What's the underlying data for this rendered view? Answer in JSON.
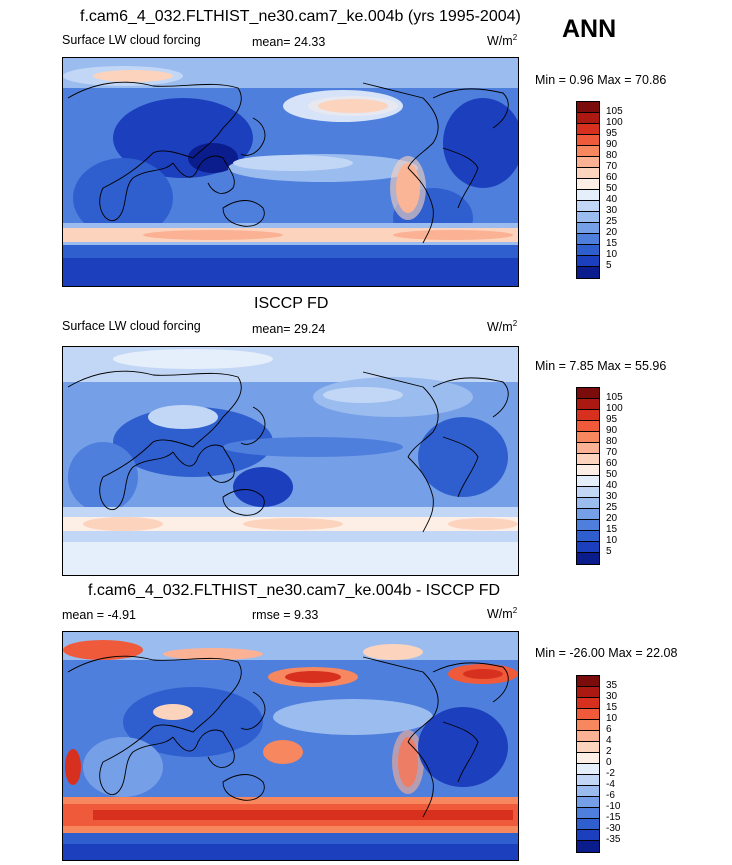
{
  "season": "ANN",
  "panels": [
    {
      "title": "f.cam6_4_032.FLTHIST_ne30.cam7_ke.004b (yrs 1995-2004)",
      "variable": "Surface LW cloud forcing",
      "stat": "mean=  24.33",
      "units_base": "W/m",
      "units_exp": "2",
      "minmax": "Min =   0.96 Max =  70.86",
      "levels": [
        "105",
        "100",
        "95",
        "90",
        "80",
        "70",
        "60",
        "50",
        "40",
        "30",
        "25",
        "20",
        "15",
        "10",
        "5"
      ],
      "colors": [
        "#7a0c0c",
        "#ac1913",
        "#d7301f",
        "#ef5a3a",
        "#f7875f",
        "#fbb194",
        "#fcd3bd",
        "#fdeee6",
        "#e5eefb",
        "#c2d7f5",
        "#9bbcef",
        "#759fe7",
        "#4f7fdc",
        "#2f5fcf",
        "#1b3fbd",
        "#0b1d8c"
      ]
    },
    {
      "title": "ISCCP FD",
      "variable": "Surface LW cloud forcing",
      "stat": "mean=  29.24",
      "units_base": "W/m",
      "units_exp": "2",
      "minmax": "Min =   7.85 Max =  55.96",
      "levels": [
        "105",
        "100",
        "95",
        "90",
        "80",
        "70",
        "60",
        "50",
        "40",
        "30",
        "25",
        "20",
        "15",
        "10",
        "5"
      ],
      "colors": [
        "#7a0c0c",
        "#ac1913",
        "#d7301f",
        "#ef5a3a",
        "#f7875f",
        "#fbb194",
        "#fcd3bd",
        "#fdeee6",
        "#e5eefb",
        "#c2d7f5",
        "#9bbcef",
        "#759fe7",
        "#4f7fdc",
        "#2f5fcf",
        "#1b3fbd",
        "#0b1d8c"
      ]
    },
    {
      "title": "f.cam6_4_032.FLTHIST_ne30.cam7_ke.004b - ISCCP FD",
      "variable": "mean =  -4.91",
      "stat": "rmse =   9.33",
      "units_base": "W/m",
      "units_exp": "2",
      "minmax": "Min = -26.00 Max =  22.08",
      "levels": [
        "35",
        "30",
        "15",
        "10",
        "6",
        "4",
        "2",
        "0",
        "-2",
        "-4",
        "-6",
        "-10",
        "-15",
        "-30",
        "-35"
      ],
      "colors": [
        "#7a0c0c",
        "#ac1913",
        "#d7301f",
        "#ef5a3a",
        "#f7875f",
        "#fbb194",
        "#fcd3bd",
        "#fdeee6",
        "#e5eefb",
        "#c2d7f5",
        "#9bbcef",
        "#759fe7",
        "#4f7fdc",
        "#2f5fcf",
        "#1b3fbd",
        "#0b1d8c"
      ]
    }
  ]
}
